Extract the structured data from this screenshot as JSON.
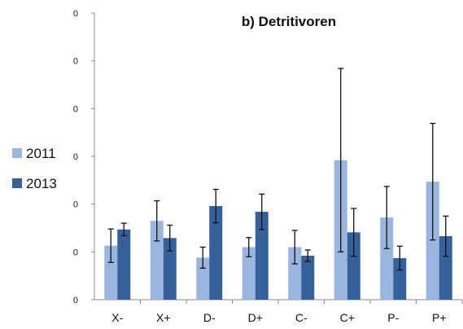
{
  "chart_data": {
    "type": "bar",
    "title": "b) Detritivoren",
    "xlabel": "",
    "ylabel": "",
    "categories": [
      "X-",
      "X+",
      "D-",
      "D+",
      "C-",
      "C+",
      "P-",
      "P+"
    ],
    "y_tick_labels": [
      "0",
      "0",
      "0",
      "0",
      "0",
      "0",
      "0"
    ],
    "ylim": [
      0,
      6
    ],
    "grid": false,
    "legend_position": "left",
    "series": [
      {
        "name": "2011",
        "color": "#9ab6de",
        "values": [
          1.13,
          1.65,
          0.88,
          1.1,
          1.1,
          2.92,
          1.72,
          2.47
        ],
        "errors": [
          0.35,
          0.42,
          0.22,
          0.2,
          0.35,
          1.92,
          0.65,
          1.22
        ]
      },
      {
        "name": "2013",
        "color": "#36609a",
        "values": [
          1.47,
          1.29,
          1.96,
          1.84,
          0.92,
          1.41,
          0.87,
          1.33
        ],
        "errors": [
          0.13,
          0.27,
          0.35,
          0.37,
          0.12,
          0.5,
          0.25,
          0.42
        ]
      }
    ]
  }
}
